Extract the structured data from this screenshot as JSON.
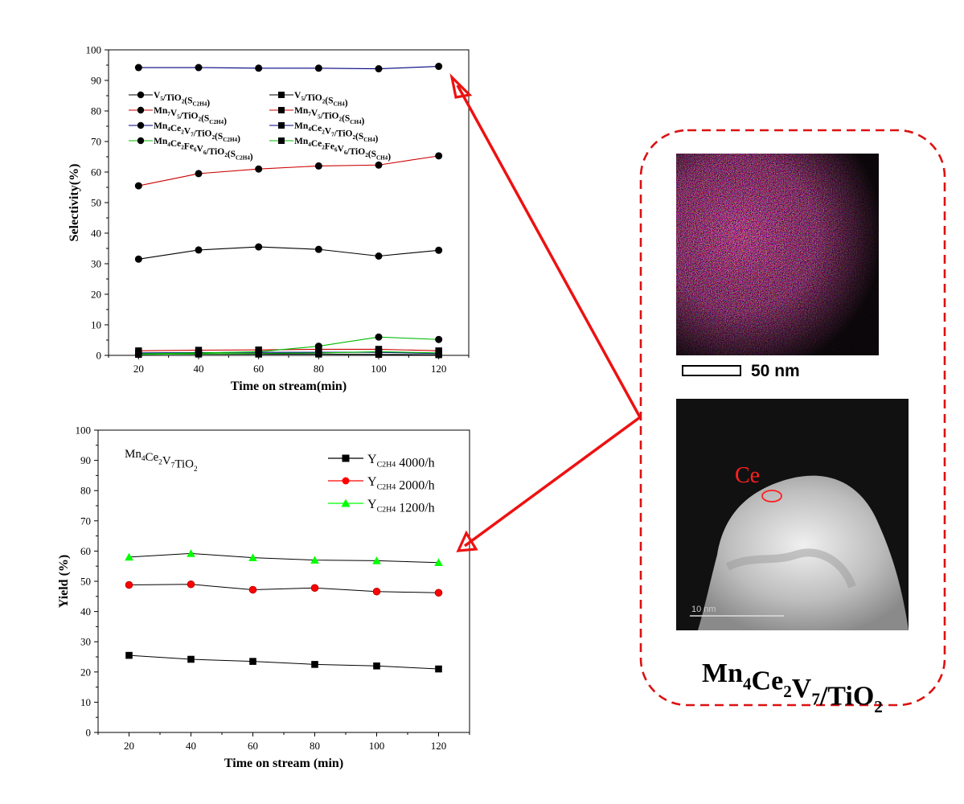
{
  "chart_data": [
    {
      "type": "line",
      "title": "",
      "xlabel": "Time on stream(min)",
      "ylabel": "Selectivity(%)",
      "xlim": [
        10,
        130
      ],
      "ylim": [
        0,
        100
      ],
      "xticks": [
        20,
        40,
        60,
        80,
        100,
        120
      ],
      "yticks": [
        0,
        10,
        20,
        30,
        40,
        50,
        60,
        70,
        80,
        90,
        100
      ],
      "x": [
        20,
        40,
        60,
        80,
        100,
        120
      ],
      "legend_position": "top-left",
      "legend": [
        {
          "base": "V",
          "sub1": "5",
          "mid": "/TiO",
          "sub2": "2",
          "paren": "(S",
          "psub": "C2H4",
          "close": ")"
        },
        {
          "base": "V",
          "sub1": "5",
          "mid": "/TiO",
          "sub2": "2",
          "paren": "(S",
          "psub": "CH4",
          "close": ")"
        },
        {
          "base": "Mn",
          "sub1": "7",
          "mid": "V",
          "sub2": "5",
          "mid2": "/TiO",
          "sub3": "2",
          "paren": "(S",
          "psub": "C2H4",
          "close": ")"
        },
        {
          "base": "Mn",
          "sub1": "7",
          "mid": "V",
          "sub2": "5",
          "mid2": "/TiO",
          "sub3": "2",
          "paren": "(S",
          "psub": "CH4",
          "close": ")"
        },
        {
          "base": "Mn",
          "sub1": "4",
          "mid": "Ce",
          "sub2": "2",
          "mid2": "V",
          "sub3": "7",
          "mid3": "/TiO",
          "sub4": "2",
          "paren": "(S",
          "psub": "C2H4",
          "close": ")"
        },
        {
          "base": "Mn",
          "sub1": "4",
          "mid": "Ce",
          "sub2": "2",
          "mid2": "V",
          "sub3": "7",
          "mid3": "/TiO",
          "sub4": "2",
          "paren": "(S",
          "psub": "CH4",
          "close": ")"
        },
        {
          "base": "Mn",
          "sub1": "4",
          "mid": "Ce",
          "sub2": "2",
          "mid2": "Fe",
          "sub3": "6",
          "mid3": "V",
          "sub4": "6",
          "mid4": "/TiO",
          "sub5": "2",
          "paren": "(S",
          "psub": "C2H4",
          "close": ")"
        },
        {
          "base": "Mn",
          "sub1": "4",
          "mid": "Ce",
          "sub2": "2",
          "mid2": "Fe",
          "sub3": "6",
          "mid3": "V",
          "sub4": "6",
          "mid4": "/TiO",
          "sub5": "2",
          "paren": "(S",
          "psub": "CH4",
          "close": ")"
        }
      ],
      "series": [
        {
          "values": [
            31.5,
            34.5,
            35.5,
            34.7,
            32.5,
            34.4
          ],
          "line_color": "#000000",
          "marker": "circle"
        },
        {
          "values": [
            0.4,
            0.4,
            0.4,
            0.4,
            0.3,
            0.2
          ],
          "line_color": "#000000",
          "marker": "square"
        },
        {
          "values": [
            55.5,
            59.5,
            61,
            62,
            62.3,
            65.3
          ],
          "line_color": "#cc0000",
          "marker": "circle"
        },
        {
          "values": [
            1.5,
            1.7,
            1.8,
            2.0,
            2.0,
            1.5
          ],
          "line_color": "#cc0000",
          "marker": "square"
        },
        {
          "values": [
            94.2,
            94.2,
            94.0,
            94.0,
            93.8,
            94.6
          ],
          "line_color": "#000080",
          "marker": "circle"
        },
        {
          "values": [
            0.8,
            0.9,
            1.0,
            1.0,
            1.0,
            0.6
          ],
          "line_color": "#000080",
          "marker": "square"
        },
        {
          "values": [
            0.5,
            0.8,
            1.2,
            3.0,
            6.0,
            5.2
          ],
          "line_color": "#00bb00",
          "marker": "circle"
        },
        {
          "values": [
            0.3,
            0.5,
            0.6,
            0.8,
            1.2,
            0.8
          ],
          "line_color": "#00bb00",
          "marker": "square"
        }
      ]
    },
    {
      "type": "line",
      "title": "",
      "xlabel": "Time on stream (min)",
      "ylabel": "Yield (%)",
      "xlim": [
        10,
        130
      ],
      "ylim": [
        0,
        100
      ],
      "xticks": [
        20,
        40,
        60,
        80,
        100,
        120
      ],
      "yticks": [
        0,
        10,
        20,
        30,
        40,
        50,
        60,
        70,
        80,
        90,
        100
      ],
      "x": [
        20,
        40,
        60,
        80,
        100,
        120
      ],
      "legend_position": "top-right",
      "annotation": {
        "t1": "Mn",
        "s1": "4",
        "t2": "Ce",
        "s2": "2",
        "t3": "V",
        "s3": "7",
        "t4": "TiO",
        "s4": "2"
      },
      "series": [
        {
          "label_main": "Y",
          "label_sub": "C2H4",
          "label_rest": " 4000/h",
          "values": [
            25.5,
            24.2,
            23.5,
            22.5,
            22.0,
            21.0
          ],
          "color": "#000000",
          "marker": "square"
        },
        {
          "label_main": "Y",
          "label_sub": "C2H4",
          "label_rest": " 2000/h",
          "values": [
            48.8,
            49.0,
            47.2,
            47.8,
            46.6,
            46.2
          ],
          "color": "#ff0000",
          "marker": "circle"
        },
        {
          "label_main": "Y",
          "label_sub": "C2H4",
          "label_rest": " 1200/h",
          "values": [
            58.0,
            59.2,
            57.8,
            57.0,
            56.8,
            56.2
          ],
          "color": "#00ff00",
          "marker": "triangle"
        }
      ]
    }
  ],
  "figure": {
    "scale_bar_label": "50 nm",
    "tem_scale_label": "10 nm",
    "tem_marker_label": "Ce",
    "caption": {
      "t1": "Mn",
      "s1": "4",
      "t2": "Ce",
      "s2": "2",
      "t3": "V",
      "s3": "7",
      "t4": "/TiO",
      "s4": "2"
    },
    "colors": {
      "arrow": "#ee1111",
      "frame": "#dd1111"
    }
  }
}
